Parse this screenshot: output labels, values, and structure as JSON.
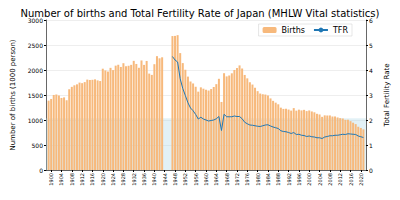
{
  "chart_data": {
    "type": "bar",
    "title": "Number of births and Total Fertility Rate of Japan (MHLW Vital statistics)",
    "y_label": "Number of births (1000 person)",
    "y2_label": "Total Fertility Rate",
    "x": [
      1899,
      1900,
      1901,
      1902,
      1903,
      1904,
      1905,
      1906,
      1907,
      1908,
      1909,
      1910,
      1911,
      1912,
      1913,
      1914,
      1915,
      1916,
      1917,
      1918,
      1919,
      1920,
      1921,
      1922,
      1923,
      1924,
      1925,
      1926,
      1927,
      1928,
      1929,
      1930,
      1931,
      1932,
      1933,
      1934,
      1935,
      1936,
      1937,
      1938,
      1939,
      1940,
      1941,
      1942,
      1943,
      1944,
      1945,
      1946,
      1947,
      1948,
      1949,
      1950,
      1951,
      1952,
      1953,
      1954,
      1955,
      1956,
      1957,
      1958,
      1959,
      1960,
      1961,
      1962,
      1963,
      1964,
      1965,
      1966,
      1967,
      1968,
      1969,
      1970,
      1971,
      1972,
      1973,
      1974,
      1975,
      1976,
      1977,
      1978,
      1979,
      1980,
      1981,
      1982,
      1983,
      1984,
      1985,
      1986,
      1987,
      1988,
      1989,
      1990,
      1991,
      1992,
      1993,
      1994,
      1995,
      1996,
      1997,
      1998,
      1999,
      2000,
      2001,
      2002,
      2003,
      2004,
      2005,
      2006,
      2007,
      2008,
      2009,
      2010,
      2011,
      2012,
      2013,
      2014,
      2015,
      2016,
      2017,
      2018,
      2019,
      2020,
      2021
    ],
    "series": [
      {
        "name": "Births",
        "type": "bar",
        "color": "#f7b97c",
        "values": [
          1387,
          1421,
          1501,
          1510,
          1490,
          1441,
          1452,
          1395,
          1615,
          1663,
          1694,
          1713,
          1748,
          1737,
          1758,
          1808,
          1800,
          1804,
          1813,
          1792,
          1779,
          2026,
          1991,
          1969,
          2043,
          1998,
          2087,
          2105,
          2061,
          2136,
          2077,
          2085,
          2103,
          2183,
          2121,
          2044,
          2191,
          2102,
          2181,
          1928,
          1902,
          2116,
          2277,
          2234,
          2254,
          null,
          null,
          null,
          2679,
          2682,
          2697,
          2338,
          2138,
          2005,
          1868,
          1770,
          1731,
          1665,
          1567,
          1653,
          1626,
          1606,
          1589,
          1619,
          1660,
          1717,
          1824,
          1361,
          1936,
          1872,
          1890,
          1934,
          2001,
          2039,
          2092,
          2030,
          1901,
          1833,
          1755,
          1709,
          1643,
          1577,
          1529,
          1515,
          1509,
          1490,
          1432,
          1383,
          1347,
          1314,
          1247,
          1222,
          1223,
          1209,
          1188,
          1238,
          1187,
          1207,
          1192,
          1203,
          1178,
          1191,
          1171,
          1154,
          1124,
          1111,
          1063,
          1093,
          1090,
          1091,
          1070,
          1071,
          1051,
          1037,
          1030,
          1004,
          1006,
          977,
          946,
          918,
          865,
          841,
          812
        ]
      },
      {
        "name": "TFR",
        "type": "line",
        "axis": "y2",
        "color": "#1f77b4",
        "band": [
          0,
          2.07
        ],
        "values": [
          null,
          null,
          null,
          null,
          null,
          null,
          null,
          null,
          null,
          null,
          null,
          null,
          null,
          null,
          null,
          null,
          null,
          null,
          null,
          null,
          null,
          null,
          null,
          null,
          null,
          null,
          null,
          null,
          null,
          null,
          null,
          null,
          null,
          null,
          null,
          null,
          null,
          null,
          null,
          null,
          null,
          null,
          null,
          null,
          null,
          null,
          null,
          null,
          4.54,
          4.4,
          4.32,
          3.65,
          3.26,
          2.98,
          2.69,
          2.48,
          2.37,
          2.22,
          2.04,
          2.11,
          2.04,
          2.0,
          1.96,
          1.98,
          2.0,
          2.05,
          2.14,
          1.58,
          2.23,
          2.13,
          2.13,
          2.13,
          2.16,
          2.14,
          2.14,
          2.05,
          1.91,
          1.85,
          1.8,
          1.79,
          1.77,
          1.75,
          1.74,
          1.77,
          1.8,
          1.81,
          1.76,
          1.72,
          1.69,
          1.66,
          1.57,
          1.54,
          1.53,
          1.5,
          1.46,
          1.5,
          1.42,
          1.43,
          1.39,
          1.38,
          1.34,
          1.36,
          1.33,
          1.32,
          1.29,
          1.29,
          1.26,
          1.32,
          1.34,
          1.37,
          1.37,
          1.39,
          1.39,
          1.41,
          1.43,
          1.42,
          1.45,
          1.44,
          1.43,
          1.42,
          1.36,
          1.33,
          1.3
        ]
      }
    ],
    "xlim": [
      1898,
      2022
    ],
    "xticks": [
      1900,
      1904,
      1908,
      1912,
      1916,
      1920,
      1924,
      1928,
      1932,
      1936,
      1940,
      1944,
      1948,
      1952,
      1956,
      1960,
      1964,
      1968,
      1972,
      1976,
      1980,
      1984,
      1988,
      1992,
      1996,
      2000,
      2004,
      2008,
      2012,
      2016,
      2020
    ],
    "ylim": [
      0,
      3000
    ],
    "yticks": [
      0,
      500,
      1000,
      1500,
      2000,
      2500,
      3000
    ],
    "y2lim": [
      0,
      6
    ],
    "y2ticks": [
      0,
      1,
      2,
      3,
      4,
      5,
      6
    ],
    "grid": true,
    "legend": "upper right"
  }
}
